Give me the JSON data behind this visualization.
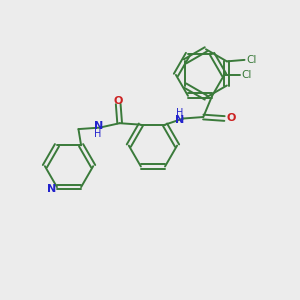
{
  "background_color": "#ececec",
  "bond_color": "#3a7a3a",
  "n_color": "#2222cc",
  "o_color": "#cc2222",
  "cl_color": "#3a7a3a",
  "lw": 1.4,
  "figsize": [
    3.0,
    3.0
  ],
  "dpi": 100,
  "xlim": [
    0,
    10
  ],
  "ylim": [
    0,
    10
  ]
}
